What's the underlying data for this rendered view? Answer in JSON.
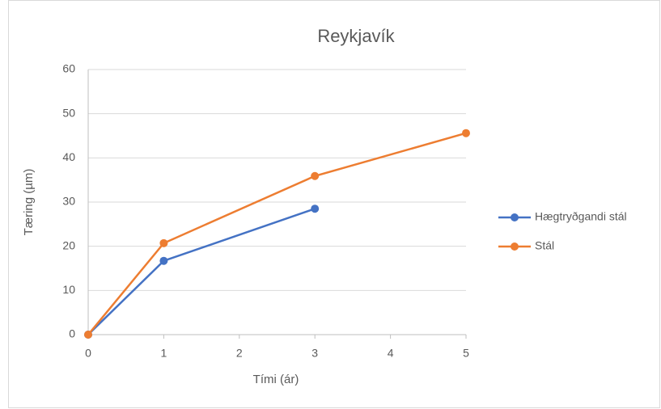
{
  "chart_data": {
    "type": "line",
    "title": "Reykjavík",
    "xlabel": "Tími (ár)",
    "ylabel": "Tæring (µm)",
    "series": [
      {
        "name": "Hægtryðgandi stál",
        "color": "#4472c4",
        "x": [
          0,
          1,
          3
        ],
        "values": [
          0,
          16.7,
          28.5
        ]
      },
      {
        "name": "Stál",
        "color": "#ed7d31",
        "x": [
          0,
          1,
          3,
          5
        ],
        "values": [
          0,
          20.7,
          35.9,
          45.6
        ]
      }
    ],
    "xlim": [
      0,
      5
    ],
    "xticks": [
      0,
      1,
      2,
      3,
      4,
      5
    ],
    "ylim": [
      0,
      60
    ],
    "yticks": [
      0,
      10,
      20,
      30,
      40,
      50,
      60
    ],
    "grid": true,
    "legend": "right"
  }
}
